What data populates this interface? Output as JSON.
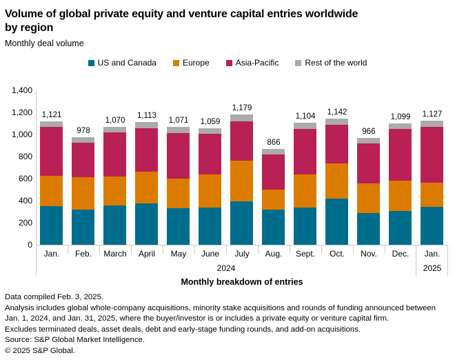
{
  "title_line1": "Volume of global private equity and venture capital entries worldwide",
  "title_line2": "by region",
  "subtitle": "Monthly deal volume",
  "chart_data": {
    "type": "bar",
    "stacked": true,
    "title": "Volume of global private equity and venture capital entries worldwide by region",
    "subtitle": "Monthly deal volume",
    "xlabel": "Monthly breakdown of entries",
    "ylabel": "",
    "ylim": [
      0,
      1400
    ],
    "grid": false,
    "legend_position": "top-center",
    "categories": [
      "Jan.",
      "Feb.",
      "March",
      "April",
      "May",
      "June",
      "July",
      "Aug.",
      "Sept.",
      "Oct.",
      "Nov.",
      "Dec.",
      "Jan."
    ],
    "year_groups": [
      {
        "label": "2024",
        "span": 12
      },
      {
        "label": "2025",
        "span": 1
      }
    ],
    "yticks": [
      "0",
      "200",
      "400",
      "600",
      "800",
      "1,000",
      "1,200",
      "1,400"
    ],
    "series": [
      {
        "name": "US and Canada",
        "color": "#006D8C",
        "values": [
          350,
          321,
          357,
          375,
          334,
          340,
          392,
          321,
          338,
          421,
          286,
          305,
          346
        ]
      },
      {
        "name": "Europe",
        "color": "#DB7C00",
        "values": [
          276,
          289,
          259,
          290,
          267,
          299,
          369,
          177,
          301,
          319,
          270,
          275,
          218
        ]
      },
      {
        "name": "Asia-Pacific",
        "color": "#B82056",
        "values": [
          442,
          313,
          404,
          390,
          411,
          367,
          359,
          321,
          410,
          349,
          361,
          467,
          508
        ]
      },
      {
        "name": "Rest of the world",
        "color": "#ABABAB",
        "values": [
          53,
          55,
          50,
          58,
          59,
          53,
          59,
          47,
          55,
          53,
          49,
          52,
          55
        ]
      }
    ],
    "totals": [
      1121,
      978,
      1070,
      1113,
      1071,
      1059,
      1179,
      866,
      1104,
      1142,
      966,
      1099,
      1127
    ],
    "totals_labels": [
      "1,121",
      "978",
      "1,070",
      "1,113",
      "1,071",
      "1,059",
      "1,179",
      "866",
      "1,104",
      "1,142",
      "966",
      "1,099",
      "1,127"
    ]
  },
  "footer": {
    "lines": [
      "Data compiled Feb. 3, 2025.",
      "Analysis includes global whole-company acquisitions, minority stake acquisitions and rounds of funding announced between Jan. 1, 2024, and Jan. 31, 2025, where the buyer/investor is or includes a private equity or venture capital firm.",
      "Excludes terminated deals, asset deals, debt and early-stage funding rounds, and add-on acquisitions.",
      "Source: S&P Global Market Intelligence.",
      "© 2025 S&P Global."
    ]
  }
}
